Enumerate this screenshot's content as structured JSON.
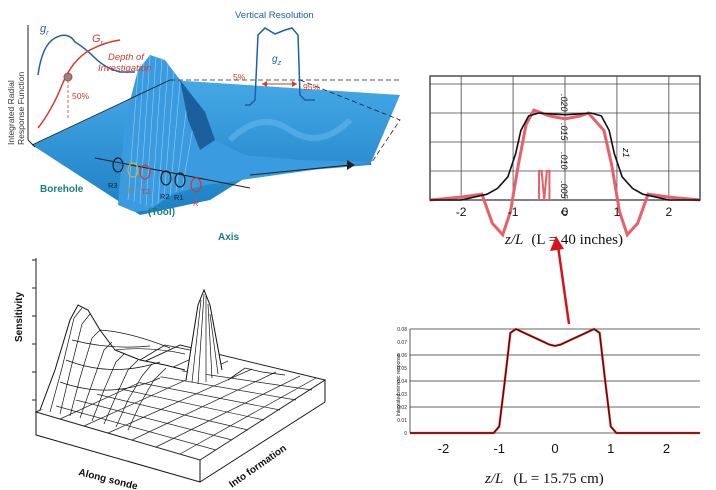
{
  "top_left": {
    "y_axis_label_line1": "Integrated Radial",
    "y_axis_label_line2": "Response Function",
    "gr_label": "g",
    "gr_sub": "r",
    "Gr_label": "G",
    "Gr_sub": "r",
    "depth_label_line1": "Depth of",
    "depth_label_line2": "Investigation",
    "pct_50": "50%",
    "vertical_resolution": "Vertical Resolution",
    "gz_label": "g",
    "gz_sub": "z",
    "pct_5": "5%",
    "pct_95": "95%",
    "borehole": "Borehole",
    "tool": "(Tool)",
    "axis": "Axis",
    "r3": "R3",
    "t1": "T1",
    "t2": "T2",
    "r2": "R2",
    "r1": "R1",
    "r_tail": "R",
    "colors": {
      "surface": "#2f8fd0",
      "teal": "#1a7f7a",
      "red": "#d23b2a",
      "blue": "#1f5fa8"
    }
  },
  "bottom_left": {
    "sensitivity": "Sensitivity",
    "along_sonde": "Along sonde",
    "into_formation": "Into formation"
  },
  "top_right": {
    "x_ticks": [
      "-2",
      "-1",
      "0",
      "1",
      "2"
    ],
    "xlabel_var": "z/L",
    "xlabel_paren": "(L = 40 inches)",
    "y_tick_labels": [
      ".020",
      ".015",
      ".010",
      ".005",
      "0"
    ],
    "curve_label": "z1",
    "colors": {
      "black": "#111111",
      "pink": "#e8606a"
    }
  },
  "bottom_right": {
    "ylabel": "Integrated intrinsic response",
    "y_ticks": [
      "0.08",
      "0.07",
      "0.06",
      "0.05",
      "0.04",
      "0.03",
      "0.02",
      "0.01",
      "0"
    ],
    "x_ticks": [
      "-2",
      "-1",
      "0",
      "1",
      "2"
    ],
    "xlabel_var": "z/L",
    "xlabel_paren": "(L = 15.75 cm)",
    "colors": {
      "red": "#e01a12",
      "black": "#111111"
    }
  },
  "chart_data": [
    {
      "type": "line",
      "xlabel": "z/L  (L = 40 inches)",
      "xlim": [
        -2.6,
        2.6
      ],
      "series": [
        {
          "x": [
            -2.6,
            -2.0,
            -1.5,
            -1.3,
            -1.1,
            -0.95,
            -0.85,
            -0.7,
            -0.5,
            -0.2,
            0,
            0.2,
            0.5,
            0.7,
            0.85,
            0.95,
            1.1,
            1.3,
            1.5,
            2.0,
            2.6
          ],
          "y": [
            0,
            0,
            0.001,
            0.002,
            0.004,
            0.008,
            0.012,
            0.0145,
            0.015,
            0.0148,
            0.0147,
            0.0148,
            0.015,
            0.0145,
            0.012,
            0.008,
            0.004,
            0.002,
            0.001,
            0,
            0
          ]
        },
        {
          "x": [
            -2.6,
            -2.0,
            -1.6,
            -1.4,
            -1.2,
            -1.05,
            -0.9,
            -0.75,
            -0.6,
            -0.45,
            -0.3,
            0,
            0.3,
            0.45,
            0.6,
            0.75,
            0.9,
            1.05,
            1.2,
            1.4,
            1.6,
            2.0,
            2.6
          ],
          "y": [
            0,
            0.0005,
            0.001,
            -0.004,
            -0.006,
            -0.002,
            0.006,
            0.013,
            0.0155,
            0.015,
            0.0145,
            0.014,
            0.0145,
            0.015,
            0.0135,
            0.012,
            0.006,
            -0.002,
            -0.006,
            -0.004,
            0.001,
            0.0005,
            0
          ]
        }
      ]
    },
    {
      "type": "line",
      "xlabel": "z/L   (L = 15.75 cm)",
      "ylabel": "Integrated intrinsic response",
      "xlim": [
        -2.6,
        2.6
      ],
      "ylim": [
        0,
        0.08
      ],
      "series": [
        {
          "x": [
            -2.6,
            -1.1,
            -1.0,
            -0.9,
            -0.8,
            -0.7,
            -0.5,
            -0.3,
            -0.1,
            0,
            0.1,
            0.3,
            0.5,
            0.7,
            0.8,
            0.9,
            1.0,
            1.1,
            2.6
          ],
          "y": [
            0,
            0,
            0.005,
            0.04,
            0.077,
            0.08,
            0.076,
            0.072,
            0.068,
            0.067,
            0.068,
            0.072,
            0.076,
            0.08,
            0.077,
            0.04,
            0.005,
            0,
            0
          ]
        }
      ]
    }
  ]
}
